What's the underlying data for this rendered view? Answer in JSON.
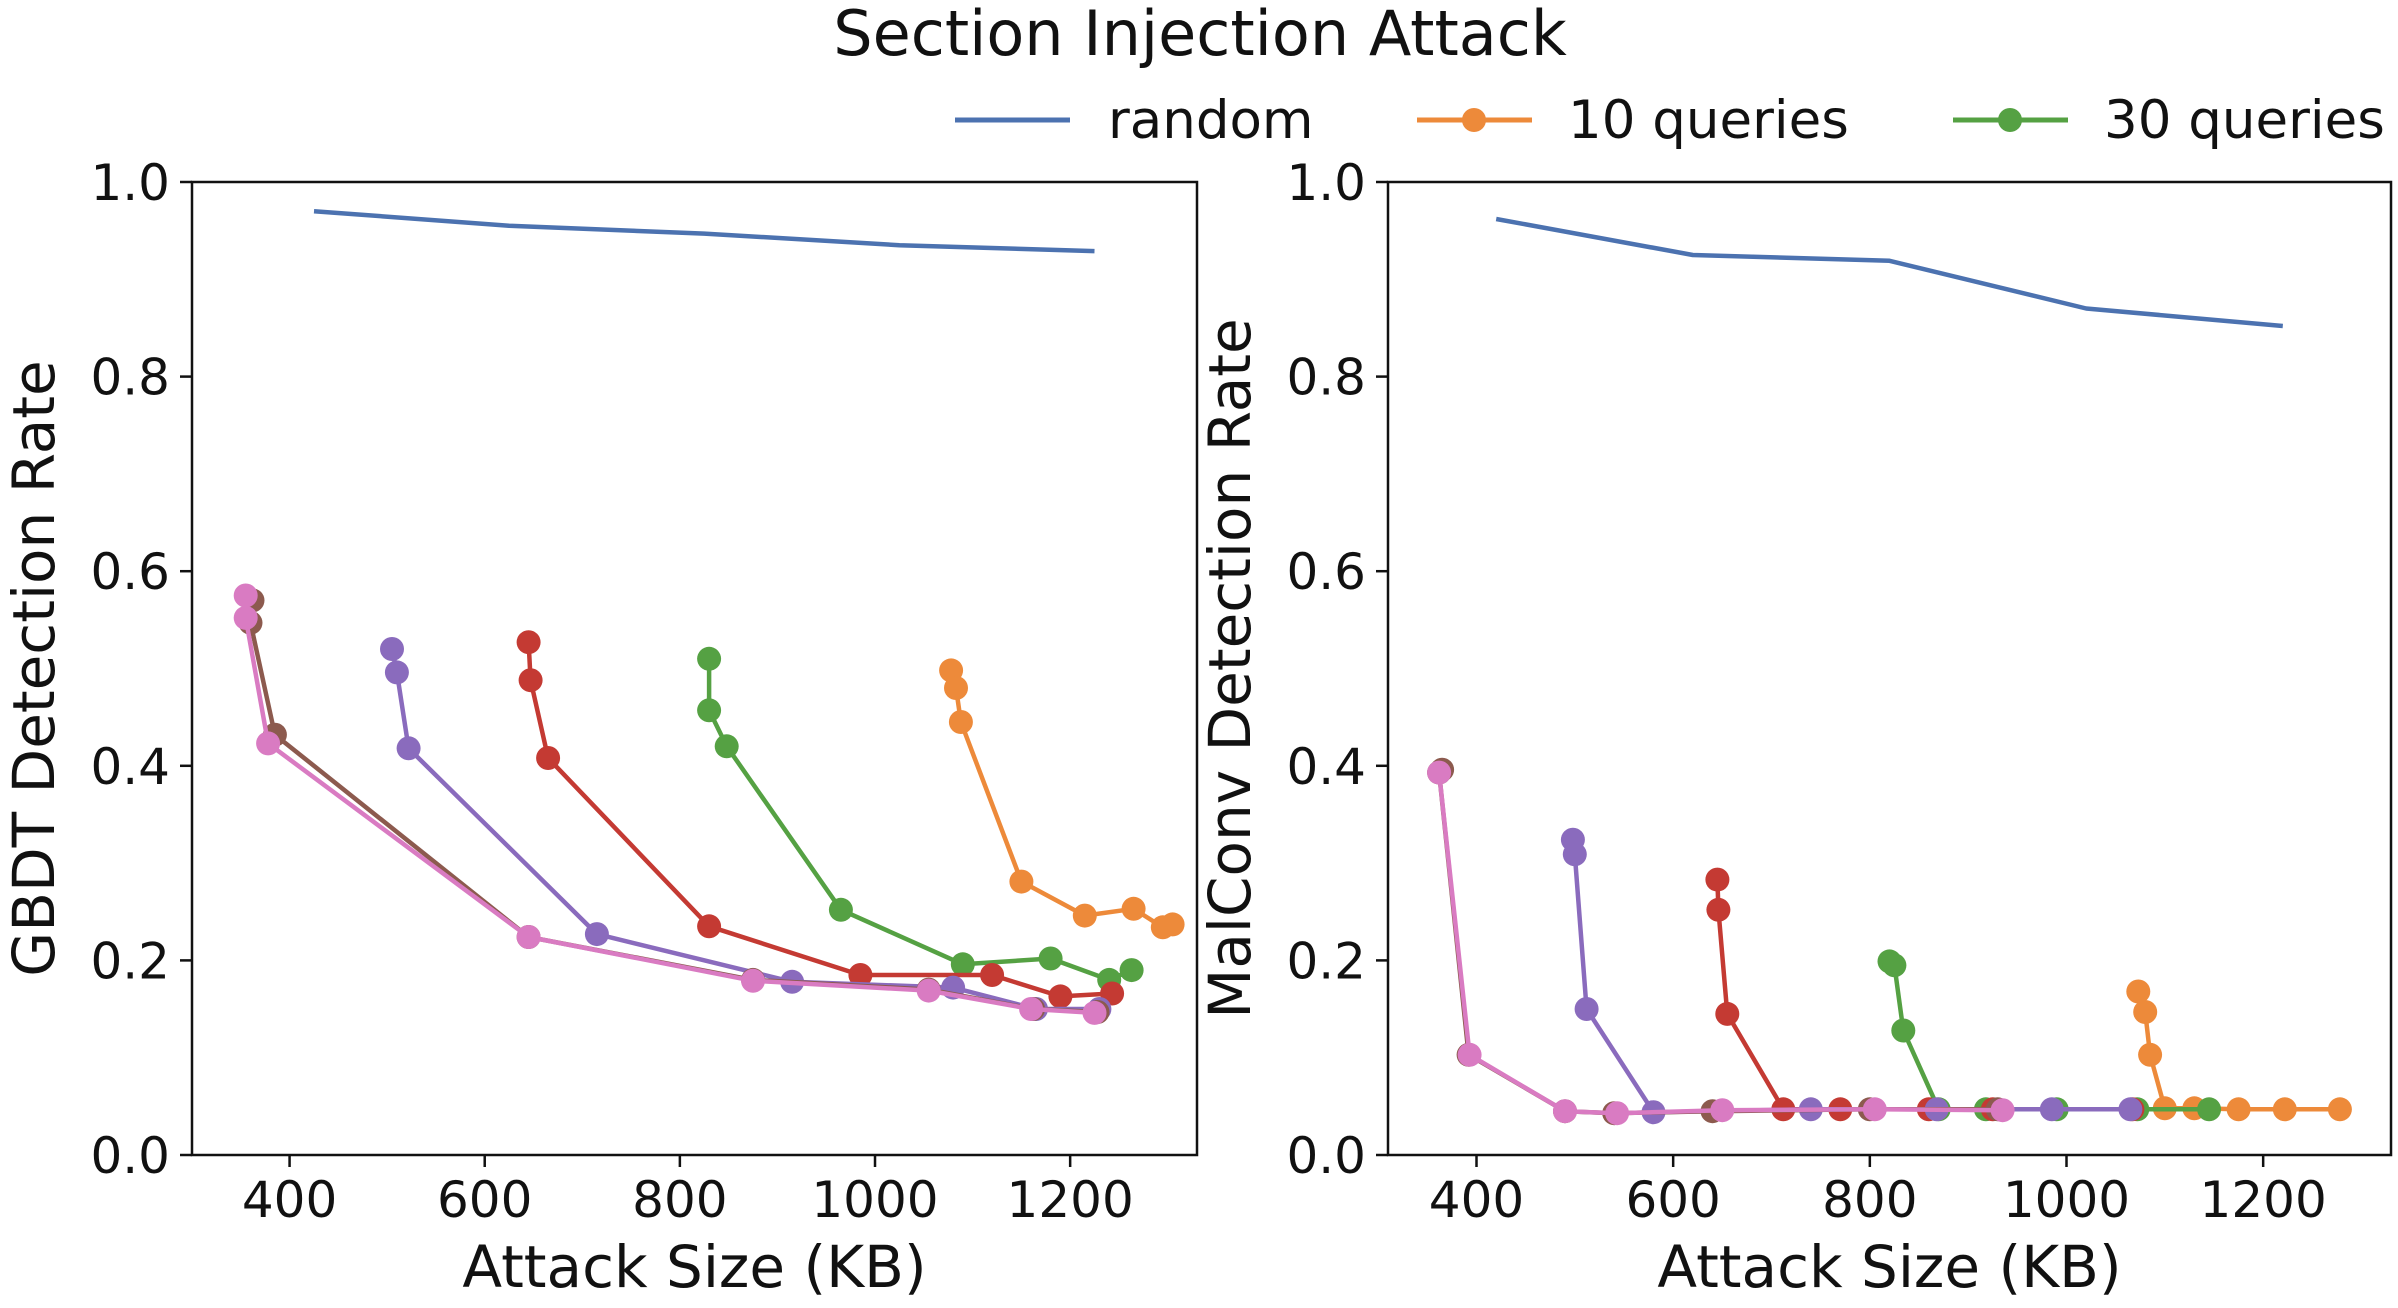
{
  "title": "Section Injection Attack",
  "legend": {
    "placement": "top-right",
    "entries": [
      {
        "label": "random",
        "color": "#4c72b0",
        "marker": false
      },
      {
        "label": "10 queries",
        "color": "#ed8a3a",
        "marker": true
      },
      {
        "label": "30 queries",
        "color": "#55a143",
        "marker": true
      }
    ]
  },
  "chart_data": [
    {
      "type": "line",
      "xlabel": "Attack Size (KB)",
      "ylabel": "GBDT Detection Rate",
      "xlim": [
        300,
        1330
      ],
      "ylim": [
        0,
        1.0
      ],
      "xticks": [
        400,
        600,
        800,
        1000,
        1200
      ],
      "yticks": [
        0.0,
        0.2,
        0.4,
        0.6,
        0.8,
        1.0
      ],
      "xtick_labels": [
        "400",
        "600",
        "800",
        "1000",
        "1200"
      ],
      "ytick_labels": [
        "0.0",
        "0.2",
        "0.4",
        "0.6",
        "0.8",
        "1.0"
      ],
      "grid": false,
      "series": [
        {
          "name": "random",
          "color": "#4c72b0",
          "marker": false,
          "points": [
            [
              425,
              0.97
            ],
            [
              625,
              0.955
            ],
            [
              825,
              0.947
            ],
            [
              1025,
              0.935
            ],
            [
              1225,
              0.929
            ]
          ]
        },
        {
          "color": "#ed8a3a",
          "marker": true,
          "points": [
            [
              1078,
              0.498
            ],
            [
              1083,
              0.48
            ],
            [
              1088,
              0.445
            ],
            [
              1150,
              0.281
            ],
            [
              1215,
              0.246
            ],
            [
              1265,
              0.253
            ],
            [
              1295,
              0.234
            ],
            [
              1305,
              0.237
            ]
          ]
        },
        {
          "color": "#55a143",
          "marker": true,
          "points": [
            [
              830,
              0.51
            ],
            [
              830,
              0.457
            ],
            [
              848,
              0.42
            ],
            [
              965,
              0.252
            ],
            [
              1090,
              0.196
            ],
            [
              1180,
              0.202
            ],
            [
              1240,
              0.18
            ],
            [
              1263,
              0.19
            ]
          ]
        },
        {
          "color": "#c43a33",
          "marker": true,
          "points": [
            [
              645,
              0.527
            ],
            [
              647,
              0.488
            ],
            [
              665,
              0.408
            ],
            [
              830,
              0.235
            ],
            [
              985,
              0.185
            ],
            [
              1120,
              0.185
            ],
            [
              1190,
              0.163
            ],
            [
              1243,
              0.166
            ]
          ]
        },
        {
          "color": "#8a6bbd",
          "marker": true,
          "points": [
            [
              505,
              0.52
            ],
            [
              510,
              0.496
            ],
            [
              522,
              0.418
            ],
            [
              715,
              0.227
            ],
            [
              915,
              0.178
            ],
            [
              1080,
              0.172
            ],
            [
              1165,
              0.15
            ],
            [
              1230,
              0.15
            ]
          ]
        },
        {
          "color": "#8c5a4e",
          "marker": true,
          "points": [
            [
              362,
              0.57
            ],
            [
              360,
              0.547
            ],
            [
              385,
              0.432
            ],
            [
              645,
              0.224
            ],
            [
              875,
              0.18
            ],
            [
              1055,
              0.17
            ],
            [
              1162,
              0.15
            ],
            [
              1228,
              0.147
            ]
          ]
        },
        {
          "color": "#d97bc2",
          "marker": true,
          "points": [
            [
              355,
              0.575
            ],
            [
              355,
              0.552
            ],
            [
              378,
              0.423
            ],
            [
              645,
              0.224
            ],
            [
              875,
              0.179
            ],
            [
              1055,
              0.169
            ],
            [
              1160,
              0.15
            ],
            [
              1225,
              0.146
            ]
          ]
        }
      ]
    },
    {
      "type": "line",
      "xlabel": "Attack Size (KB)",
      "ylabel": "MalConv Detection Rate",
      "xlim": [
        310,
        1330
      ],
      "ylim": [
        0,
        1.0
      ],
      "xticks": [
        400,
        600,
        800,
        1000,
        1200
      ],
      "yticks": [
        0.0,
        0.2,
        0.4,
        0.6,
        0.8,
        1.0
      ],
      "xtick_labels": [
        "400",
        "600",
        "800",
        "1000",
        "1200"
      ],
      "ytick_labels": [
        "0.0",
        "0.2",
        "0.4",
        "0.6",
        "0.8",
        "1.0"
      ],
      "grid": false,
      "series": [
        {
          "name": "random",
          "color": "#4c72b0",
          "marker": false,
          "points": [
            [
              420,
              0.962
            ],
            [
              620,
              0.925
            ],
            [
              820,
              0.919
            ],
            [
              1020,
              0.87
            ],
            [
              1220,
              0.852
            ]
          ]
        },
        {
          "color": "#ed8a3a",
          "marker": true,
          "points": [
            [
              1073,
              0.168
            ],
            [
              1080,
              0.147
            ],
            [
              1085,
              0.103
            ],
            [
              1100,
              0.048
            ],
            [
              1130,
              0.048
            ],
            [
              1175,
              0.047
            ],
            [
              1222,
              0.047
            ],
            [
              1278,
              0.047
            ]
          ]
        },
        {
          "color": "#55a143",
          "marker": true,
          "points": [
            [
              820,
              0.199
            ],
            [
              825,
              0.195
            ],
            [
              834,
              0.128
            ],
            [
              870,
              0.047
            ],
            [
              918,
              0.047
            ],
            [
              990,
              0.047
            ],
            [
              1072,
              0.047
            ],
            [
              1145,
              0.047
            ]
          ]
        },
        {
          "color": "#c43a33",
          "marker": true,
          "points": [
            [
              645,
              0.283
            ],
            [
              646,
              0.252
            ],
            [
              655,
              0.145
            ],
            [
              712,
              0.047
            ],
            [
              770,
              0.047
            ],
            [
              860,
              0.047
            ],
            [
              925,
              0.047
            ],
            [
              1067,
              0.047
            ]
          ]
        },
        {
          "color": "#8a6bbd",
          "marker": true,
          "points": [
            [
              498,
              0.324
            ],
            [
              500,
              0.309
            ],
            [
              512,
              0.15
            ],
            [
              580,
              0.044
            ],
            [
              740,
              0.047
            ],
            [
              868,
              0.047
            ],
            [
              985,
              0.047
            ],
            [
              1065,
              0.047
            ]
          ]
        },
        {
          "color": "#8c5a4e",
          "marker": true,
          "points": [
            [
              365,
              0.396
            ],
            [
              362,
              0.393
            ],
            [
              392,
              0.103
            ],
            [
              490,
              0.045
            ],
            [
              540,
              0.043
            ],
            [
              640,
              0.045
            ],
            [
              800,
              0.047
            ],
            [
              930,
              0.047
            ]
          ]
        },
        {
          "color": "#d97bc2",
          "marker": true,
          "points": [
            [
              362,
              0.393
            ],
            [
              393,
              0.103
            ],
            [
              490,
              0.045
            ],
            [
              543,
              0.043
            ],
            [
              650,
              0.046
            ],
            [
              805,
              0.047
            ],
            [
              935,
              0.046
            ]
          ]
        }
      ]
    }
  ]
}
